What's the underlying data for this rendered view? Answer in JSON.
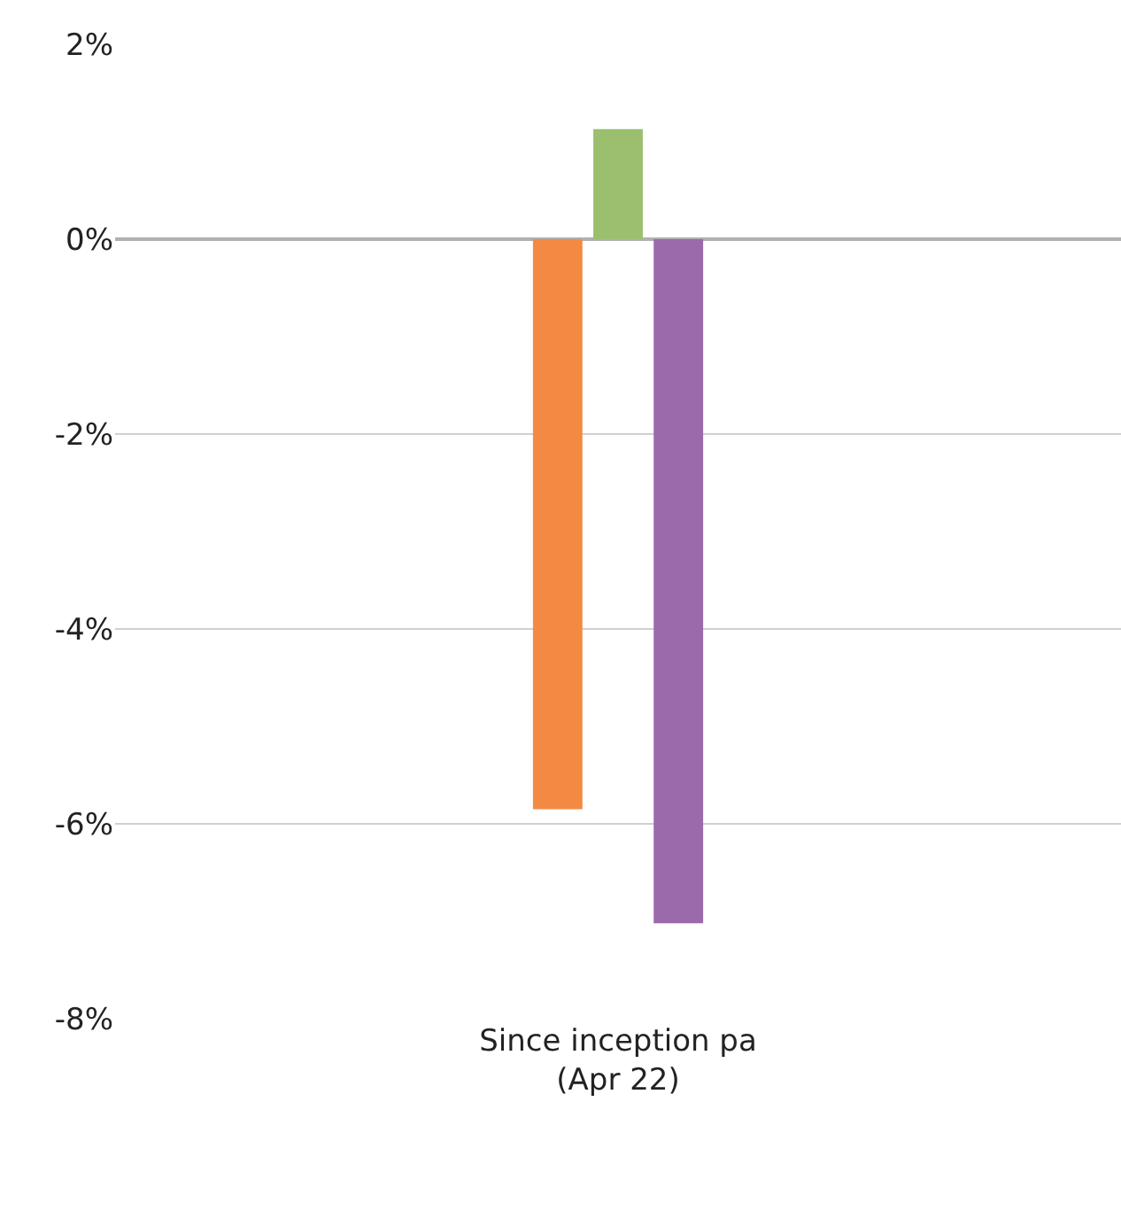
{
  "chart_data": {
    "type": "bar",
    "categories": [
      "Since inception pa\n(Apr 22)"
    ],
    "series": [
      {
        "color": "#f28a44",
        "values": [
          -5.85
        ]
      },
      {
        "color": "#9bbf6e",
        "values": [
          1.13
        ]
      },
      {
        "color": "#9b6aab",
        "values": [
          -7.02
        ]
      }
    ],
    "ylim": [
      -8,
      2
    ],
    "yticks": [
      {
        "value": 2,
        "label": "2%"
      },
      {
        "value": 0,
        "label": "0%"
      },
      {
        "value": -2,
        "label": "-2%"
      },
      {
        "value": -4,
        "label": "-4%"
      },
      {
        "value": -6,
        "label": "-6%"
      },
      {
        "value": -8,
        "label": "-8%"
      }
    ],
    "grid": "y"
  }
}
